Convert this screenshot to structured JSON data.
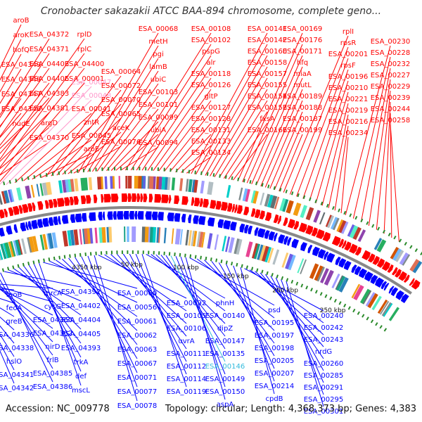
{
  "map": {
    "title": "Cronobacter sakazakii ATCC BAA-894 chromosome, complete geno...",
    "accession_text": "Accession: NC_009778",
    "summary_text": "Topology: circular; Length: 4,368,373 bp; Genes: 4,383",
    "kbp_labels": [
      "4350 kbp",
      "50 kbp",
      "100 kbp",
      "150 kbp",
      "200 kbp",
      "250 kbp"
    ]
  },
  "colors": {
    "forward": "#ff0000",
    "reverse": "#0000ff",
    "highlight_forward": "#ff99cc",
    "highlight_reverse": "#33bbdd",
    "backbone": "#888888",
    "tick": "#2a8a2a"
  },
  "labels_forward": [
    "aroB",
    "aroK",
    "hofQ",
    "ESA_04349",
    "ESA_04348",
    "ESA_04347",
    "ESA_04346",
    "nudE",
    "ESA_04372",
    "ESA_04371",
    "ESA_04403",
    "ESA_04406",
    "ESA_04383",
    "ESA_04381",
    "argD",
    "ESA_04370",
    "rplD",
    "rplC",
    "ESA_04400",
    "ESA_00001",
    "ESA_00047",
    "ESA_00048",
    "ESA_00041",
    "zntR",
    "ESA_00045",
    "aroE",
    "ESA_00064",
    "ESA_00072",
    "ESA_00070",
    "ESA_00065",
    "aceK",
    "ESA_00076",
    "ESA_00068",
    "metH",
    "pgi",
    "lamB",
    "ubiC",
    "ESA_00103",
    "ESA_00101",
    "ESA_00099",
    "ubiA",
    "ESA_00094",
    "ESA_00108",
    "ESA_00102",
    "pspG",
    "alr",
    "ESA_00118",
    "ESA_00126",
    "gltP",
    "ESA_00127",
    "ESA_00128",
    "ESA_00131",
    "ESA_00133",
    "ESA_00134",
    "ESA_00141",
    "ESA_00142",
    "ESA_00160",
    "ESA_00158",
    "ESA_00157",
    "ESA_00155",
    "ESA_00154",
    "ESA_00153",
    "fxsA",
    "ESA_00166",
    "ESA_00169",
    "ESA_00176",
    "ESA_00171",
    "hfq",
    "miaA",
    "mutL",
    "ESA_00189",
    "ESA_00188",
    "ESA_00187",
    "ESA_00199",
    "rplI",
    "rpsR",
    "ESA_00201",
    "rpsF",
    "ESA_00196",
    "ESA_00210",
    "ESA_00221",
    "ESA_00219",
    "ESA_00216",
    "ESA_00234",
    "ESA_00230",
    "ESA_00228",
    "ESA_00232",
    "ESA_00227",
    "ESA_00229",
    "ESA_00239",
    "ESA_00244",
    "ESA_00258"
  ],
  "labels_reverse": [
    "feoB",
    "feoA",
    "greB",
    "ESA_04336",
    "ESA_04338",
    "hslO",
    "ESA_04341",
    "ESA_04342",
    "mrcA",
    "cysG",
    "ESA_04360",
    "ESA_04362",
    "nirD",
    "frlB",
    "ESA_04385",
    "ESA_04386",
    "ESA_04392",
    "ESA_04402",
    "ESA_04404",
    "ESA_04405",
    "ESA_04393",
    "trkA",
    "def",
    "mscL",
    "ESA_00060",
    "ESA_00056",
    "ESA_00061",
    "ESA_00062",
    "ESA_00063",
    "ESA_00067",
    "ESA_00071",
    "ESA_00077",
    "ESA_00078",
    "ESA_00092",
    "ESA_00105",
    "ESA_00106",
    "uvrA",
    "ESA_00111",
    "ESA_00112",
    "ESA_00114",
    "ESA_00119",
    "phnH",
    "ESA_00140",
    "dipZ",
    "ESA_00147",
    "ESA_00135",
    "ESA_00146",
    "ESA_00149",
    "ESA_00150",
    "aspA",
    "psd",
    "ESA_00195",
    "ESA_00197",
    "ESA_00198",
    "ESA_00205",
    "ESA_00207",
    "ESA_00214",
    "cpdB",
    "ESA_00240",
    "ESA_00242",
    "ESA_00243",
    "nrdG",
    "ESA_00260",
    "ESA_00285",
    "ESA_00291",
    "ESA_00295",
    "ESA_00301"
  ],
  "highlighted_labels": [
    "ESA_00047",
    "ESA_00048",
    "ESA_00146"
  ]
}
